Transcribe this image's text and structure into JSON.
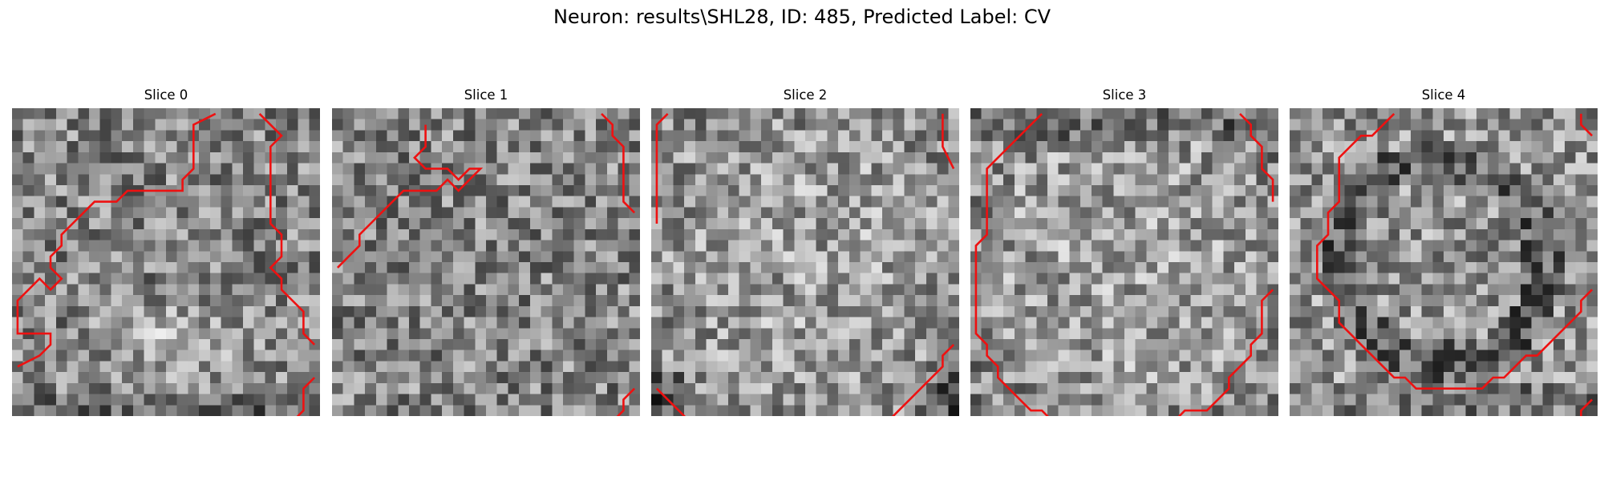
{
  "figure": {
    "title": "Neuron: results\\SHL28, ID: 485, Predicted Label: CV",
    "contour_color": "#ee1111",
    "grid_cells": 28,
    "slices": [
      {
        "label": "Slice 0",
        "seed": 11,
        "pattern": "blob-bottom",
        "contours": [
          [
            [
              18,
              0
            ],
            [
              16,
              1
            ],
            [
              16,
              5
            ],
            [
              15,
              6
            ],
            [
              15,
              7
            ],
            [
              10,
              7
            ],
            [
              9,
              8
            ],
            [
              7,
              8
            ],
            [
              6,
              9
            ],
            [
              5,
              10
            ],
            [
              4,
              11
            ],
            [
              4,
              12
            ],
            [
              3,
              13
            ],
            [
              3,
              14
            ],
            [
              4,
              15
            ],
            [
              3,
              16
            ],
            [
              2,
              15
            ],
            [
              1,
              16
            ],
            [
              0,
              17
            ],
            [
              0,
              20
            ],
            [
              3,
              20
            ],
            [
              3,
              21
            ],
            [
              2,
              22
            ],
            [
              0,
              23
            ]
          ],
          [
            [
              22,
              0
            ],
            [
              24,
              2
            ],
            [
              23,
              3
            ],
            [
              23,
              10
            ],
            [
              24,
              11
            ],
            [
              24,
              13
            ],
            [
              23,
              14
            ],
            [
              24,
              15
            ],
            [
              24,
              16
            ],
            [
              25,
              17
            ],
            [
              26,
              18
            ],
            [
              26,
              20
            ],
            [
              27,
              21
            ]
          ],
          [
            [
              27,
              24
            ],
            [
              26,
              25
            ],
            [
              26,
              27
            ],
            [
              25,
              28
            ],
            [
              25,
              29
            ]
          ]
        ]
      },
      {
        "label": "Slice 1",
        "seed": 23,
        "pattern": "noise",
        "contours": [
          [
            [
              8,
              1
            ],
            [
              8,
              2
            ],
            [
              8,
              3
            ],
            [
              7,
              4
            ],
            [
              8,
              5
            ],
            [
              10,
              5
            ],
            [
              11,
              6
            ],
            [
              12,
              5
            ],
            [
              13,
              5
            ],
            [
              12,
              6
            ],
            [
              11,
              7
            ],
            [
              10,
              6
            ],
            [
              9,
              7
            ],
            [
              6,
              7
            ],
            [
              5,
              8
            ],
            [
              3,
              10
            ],
            [
              2,
              11
            ],
            [
              2,
              12
            ],
            [
              1,
              13
            ],
            [
              0,
              14
            ]
          ],
          [
            [
              24,
              0
            ],
            [
              25,
              1
            ],
            [
              25,
              2
            ],
            [
              26,
              3
            ],
            [
              26,
              8
            ],
            [
              27,
              9
            ]
          ],
          [
            [
              27,
              25
            ],
            [
              26,
              26
            ],
            [
              26,
              27
            ],
            [
              25,
              28
            ]
          ]
        ]
      },
      {
        "label": "Slice 2",
        "seed": 37,
        "pattern": "bright-center",
        "contours": [
          [
            [
              1,
              0
            ],
            [
              0,
              1
            ],
            [
              0,
              10
            ]
          ],
          [
            [
              26,
              0
            ],
            [
              26,
              3
            ],
            [
              27,
              5
            ]
          ],
          [
            [
              0,
              25
            ],
            [
              1,
              26
            ],
            [
              2,
              27
            ],
            [
              3,
              28
            ]
          ],
          [
            [
              27,
              21
            ],
            [
              26,
              22
            ],
            [
              26,
              23
            ],
            [
              24,
              25
            ],
            [
              23,
              26
            ],
            [
              22,
              27
            ],
            [
              21,
              28
            ]
          ]
        ]
      },
      {
        "label": "Slice 3",
        "seed": 51,
        "pattern": "ring-bright",
        "contours": [
          [
            [
              6,
              0
            ],
            [
              5,
              1
            ],
            [
              4,
              2
            ],
            [
              3,
              3
            ],
            [
              2,
              4
            ],
            [
              1,
              5
            ],
            [
              1,
              7
            ],
            [
              1,
              9
            ],
            [
              1,
              11
            ],
            [
              0,
              12
            ],
            [
              0,
              20
            ],
            [
              1,
              21
            ],
            [
              1,
              22
            ],
            [
              2,
              23
            ],
            [
              2,
              24
            ],
            [
              3,
              25
            ],
            [
              4,
              26
            ],
            [
              5,
              27
            ],
            [
              6,
              27
            ],
            [
              7,
              28
            ]
          ],
          [
            [
              24,
              0
            ],
            [
              25,
              1
            ],
            [
              25,
              2
            ],
            [
              26,
              3
            ],
            [
              26,
              5
            ],
            [
              27,
              6
            ],
            [
              27,
              8
            ]
          ],
          [
            [
              27,
              16
            ],
            [
              26,
              17
            ],
            [
              26,
              20
            ],
            [
              25,
              21
            ],
            [
              25,
              22
            ],
            [
              24,
              23
            ],
            [
              23,
              24
            ],
            [
              23,
              25
            ],
            [
              22,
              26
            ],
            [
              21,
              27
            ],
            [
              19,
              27
            ],
            [
              18,
              28
            ]
          ]
        ]
      },
      {
        "label": "Slice 4",
        "seed": 67,
        "pattern": "ring-dark",
        "contours": [
          [
            [
              9,
              0
            ],
            [
              8,
              1
            ],
            [
              7,
              2
            ],
            [
              6,
              2
            ],
            [
              5,
              3
            ],
            [
              4,
              4
            ],
            [
              4,
              8
            ],
            [
              3,
              9
            ],
            [
              3,
              11
            ],
            [
              2,
              12
            ],
            [
              2,
              15
            ],
            [
              3,
              16
            ],
            [
              4,
              17
            ],
            [
              4,
              19
            ],
            [
              5,
              20
            ],
            [
              6,
              21
            ],
            [
              7,
              22
            ],
            [
              8,
              23
            ],
            [
              9,
              24
            ],
            [
              10,
              24
            ],
            [
              11,
              25
            ],
            [
              17,
              25
            ],
            [
              18,
              24
            ],
            [
              19,
              24
            ],
            [
              21,
              22
            ],
            [
              22,
              22
            ],
            [
              24,
              20
            ],
            [
              25,
              19
            ],
            [
              26,
              18
            ],
            [
              26,
              17
            ],
            [
              27,
              16
            ]
          ],
          [
            [
              26,
              0
            ],
            [
              26,
              1
            ],
            [
              27,
              2
            ]
          ],
          [
            [
              27,
              26
            ],
            [
              26,
              27
            ],
            [
              26,
              28
            ]
          ]
        ]
      }
    ]
  }
}
